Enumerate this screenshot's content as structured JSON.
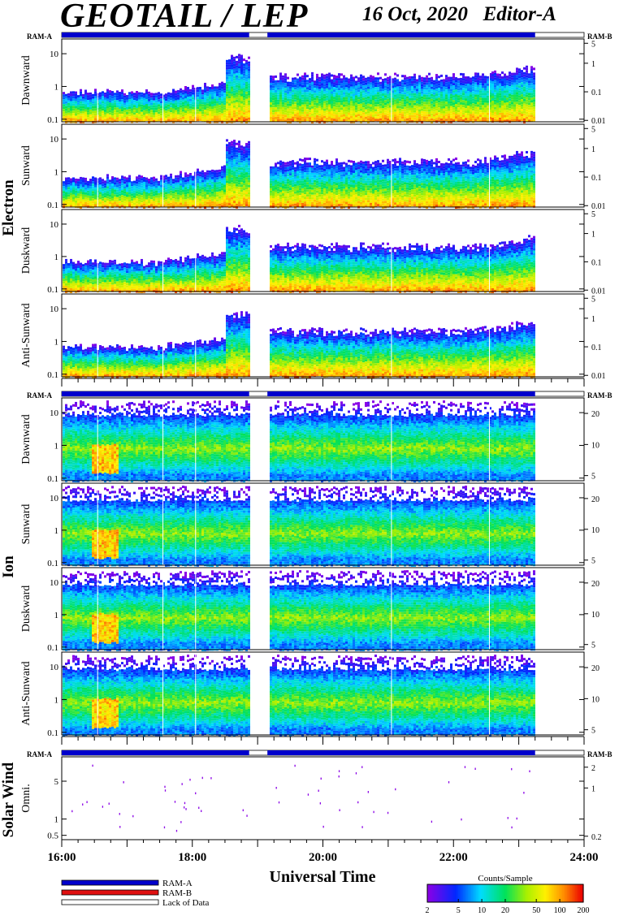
{
  "header": {
    "title": "GEOTAIL / LEP",
    "date": "16 Oct, 2020",
    "editor": "Editor-A"
  },
  "ram_labels": {
    "left": "RAM-A",
    "right": "RAM-B"
  },
  "colors": {
    "ram_a": "#0000cc",
    "ram_b": "#e01010",
    "lack_of_data": "#ffffff"
  },
  "chart_data": {
    "type": "heatmap",
    "x_axis": {
      "label": "Universal Time",
      "ticks": [
        "16:00",
        "18:00",
        "20:00",
        "22:00",
        "24:00"
      ],
      "range_hours": [
        16,
        24
      ]
    },
    "data_gap_hours": [
      18.87,
      19.15
    ],
    "ram_a_end_hours": 23.25,
    "groups": [
      {
        "name": "Electron",
        "panels": [
          {
            "name": "Dawnward",
            "left_ticks": [
              "10",
              "1",
              "0.1"
            ],
            "right_ticks": [
              "5",
              "1",
              "0.1",
              "0.01"
            ]
          },
          {
            "name": "Sunward",
            "left_ticks": [
              "10",
              "1",
              "0.1"
            ],
            "right_ticks": [
              "5",
              "1",
              "0.1",
              "0.01"
            ]
          },
          {
            "name": "Duskward",
            "left_ticks": [
              "10",
              "1",
              "0.1"
            ],
            "right_ticks": [
              "5",
              "1",
              "0.1",
              "0.01"
            ]
          },
          {
            "name": "Anti-Sunward",
            "left_ticks": [
              "10",
              "1",
              "0.1"
            ],
            "right_ticks": [
              "5",
              "1",
              "0.1",
              "0.01"
            ]
          }
        ]
      },
      {
        "name": "Ion",
        "panels": [
          {
            "name": "Dawnward",
            "left_ticks": [
              "10",
              "1",
              "0.1"
            ],
            "right_ticks": [
              "20",
              "10",
              "5"
            ]
          },
          {
            "name": "Sunward",
            "left_ticks": [
              "10",
              "1",
              "0.1"
            ],
            "right_ticks": [
              "20",
              "10",
              "5"
            ]
          },
          {
            "name": "Duskward",
            "left_ticks": [
              "10",
              "1",
              "0.1"
            ],
            "right_ticks": [
              "20",
              "10",
              "5"
            ]
          },
          {
            "name": "Anti-Sunward",
            "left_ticks": [
              "10",
              "1",
              "0.1"
            ],
            "right_ticks": [
              "20",
              "10",
              "5"
            ]
          }
        ]
      },
      {
        "name": "Solar Wind",
        "panels": [
          {
            "name": "Omni.",
            "left_ticks": [
              "5",
              "1",
              "0.5"
            ],
            "right_ticks": [
              "2",
              "1",
              "0.2"
            ]
          }
        ]
      }
    ],
    "legend": {
      "entries": [
        "RAM-A",
        "RAM-B",
        "Lack of Data"
      ],
      "colorbar_title": "Counts/Sample",
      "colorbar_ticks": [
        "2",
        "5",
        "10",
        "20",
        "50",
        "100",
        "200"
      ],
      "colorbar_range": [
        2,
        200
      ],
      "colorbar_scale": "log"
    }
  }
}
